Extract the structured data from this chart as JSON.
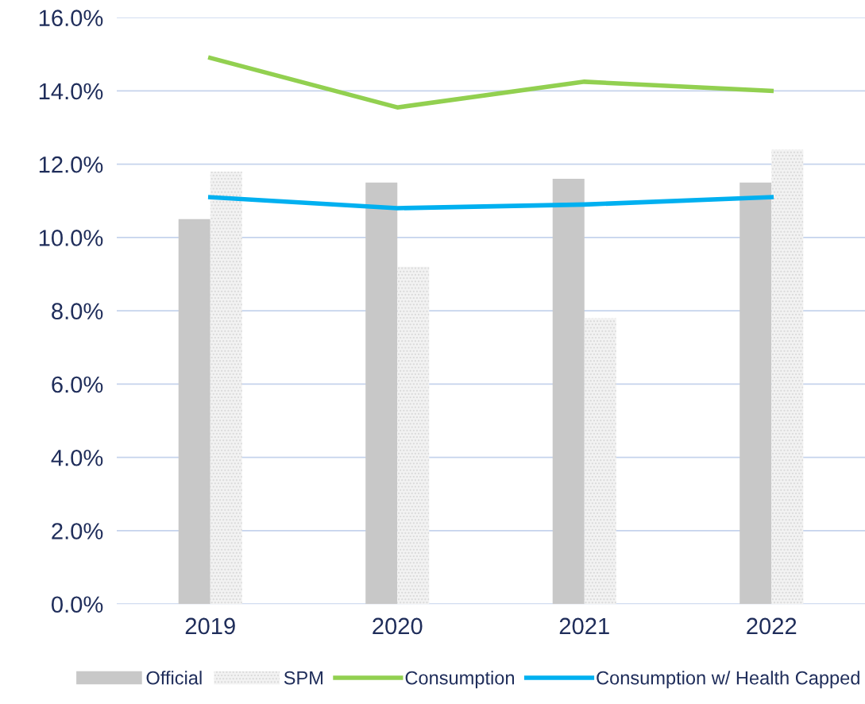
{
  "chart_data": {
    "type": "bar",
    "categories": [
      "2019",
      "2020",
      "2021",
      "2022"
    ],
    "series": [
      {
        "name": "Official",
        "color": "#c8c8c8",
        "values": [
          10.5,
          11.5,
          11.6,
          11.5
        ]
      },
      {
        "name": "SPM",
        "color": "#d9d9d9",
        "values": [
          11.8,
          9.2,
          7.8,
          12.4
        ]
      },
      {
        "name": "Consumption",
        "type": "line",
        "color": "#92d050",
        "values": [
          14.9,
          13.55,
          14.25,
          14.0
        ]
      },
      {
        "name": "Consumption w/ Health Capped",
        "type": "line",
        "color": "#00b0f0",
        "values": [
          11.1,
          10.8,
          10.9,
          11.1
        ]
      }
    ],
    "ylim": [
      0,
      16
    ],
    "yticks": [
      {
        "value": 0,
        "label": "0.0%"
      },
      {
        "value": 2,
        "label": "2.0%"
      },
      {
        "value": 4,
        "label": "4.0%"
      },
      {
        "value": 6,
        "label": "6.0%"
      },
      {
        "value": 8,
        "label": "8.0%"
      },
      {
        "value": 10,
        "label": "10.0%"
      },
      {
        "value": 12,
        "label": "12.0%"
      },
      {
        "value": 14,
        "label": "14.0%"
      },
      {
        "value": 16,
        "label": "16.0%"
      }
    ],
    "grid": "y",
    "legend": "bottom",
    "marker": "none",
    "line_style": "solid"
  }
}
